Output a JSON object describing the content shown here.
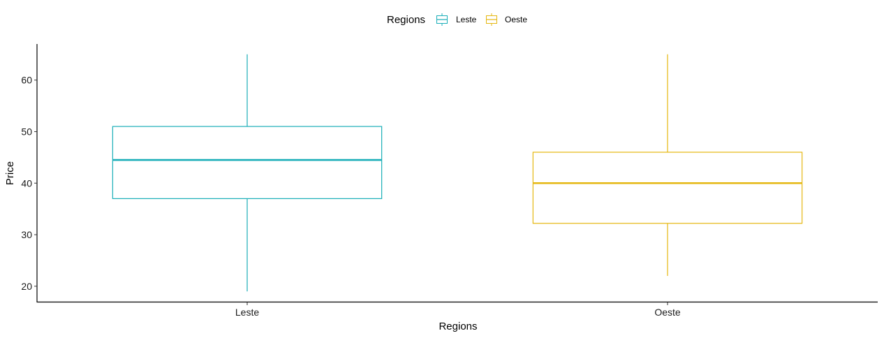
{
  "chart_data": {
    "type": "boxplot",
    "xlabel": "Regions",
    "ylabel": "Price",
    "ylim": [
      17,
      67
    ],
    "yticks": [
      20,
      30,
      40,
      50,
      60
    ],
    "categories": [
      "Leste",
      "Oeste"
    ],
    "series": [
      {
        "name": "Leste",
        "color": "#1aaeb8",
        "min": 19,
        "q1": 37,
        "median": 44.5,
        "q3": 51,
        "max": 65
      },
      {
        "name": "Oeste",
        "color": "#e5b710",
        "min": 22,
        "q1": 32.2,
        "median": 40,
        "q3": 46,
        "max": 65
      }
    ],
    "legend": {
      "title": "Regions",
      "position": "top",
      "items": [
        "Leste",
        "Oeste"
      ]
    },
    "grid": false
  }
}
